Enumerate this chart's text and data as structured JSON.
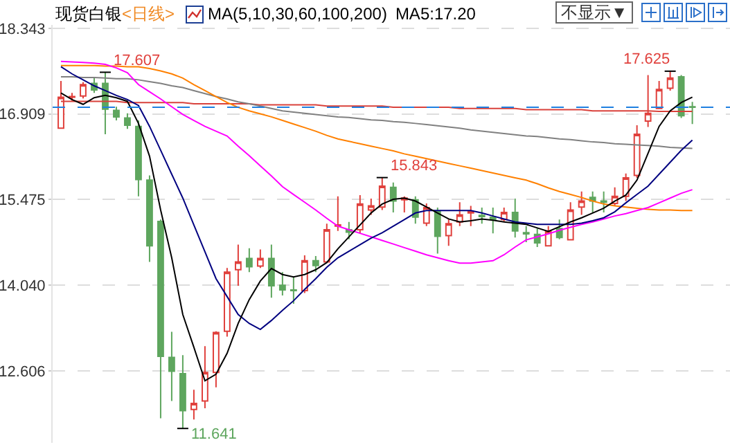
{
  "chart_data": {
    "type": "candlestick",
    "title": "现货白银",
    "subtitle": "<日线>",
    "categories": [
      null,
      null,
      null,
      null,
      null,
      null,
      null,
      null,
      null,
      null,
      null,
      null,
      null,
      null,
      null,
      null,
      null,
      null,
      null,
      null,
      null,
      null,
      null,
      null,
      null,
      null,
      null,
      null,
      null,
      null,
      null,
      null,
      null,
      null,
      null,
      null,
      null,
      null,
      null,
      null,
      null,
      null,
      null,
      null,
      null,
      null,
      null,
      null,
      null,
      null,
      null,
      null,
      null,
      null,
      null,
      null,
      null,
      null
    ],
    "ohlc": [
      [
        16.67,
        17.46,
        16.67,
        17.19
      ],
      [
        17.19,
        17.26,
        17.13,
        17.2
      ],
      [
        17.21,
        17.44,
        17.17,
        17.4
      ],
      [
        17.42,
        17.53,
        17.26,
        17.31
      ],
      [
        17.42,
        17.607,
        16.57,
        16.99
      ],
      [
        16.97,
        17.03,
        16.8,
        16.86
      ],
      [
        16.84,
        16.92,
        16.66,
        16.72
      ],
      [
        16.7,
        16.8,
        15.53,
        15.81
      ],
      [
        15.8,
        15.88,
        14.43,
        14.7
      ],
      [
        15.11,
        15.14,
        11.81,
        12.85
      ],
      [
        12.83,
        13.26,
        12.1,
        12.6
      ],
      [
        12.56,
        12.87,
        11.641,
        11.94
      ],
      [
        11.96,
        12.29,
        11.79,
        12.06
      ],
      [
        12.1,
        13.02,
        11.98,
        12.58
      ],
      [
        12.58,
        13.27,
        12.33,
        13.25
      ],
      [
        13.27,
        14.33,
        13.18,
        14.26
      ],
      [
        14.3,
        14.72,
        14.03,
        14.43
      ],
      [
        14.49,
        14.66,
        14.26,
        14.35
      ],
      [
        14.36,
        14.64,
        14.33,
        14.49
      ],
      [
        14.49,
        14.72,
        13.83,
        14.03
      ],
      [
        14.04,
        14.26,
        13.87,
        13.96
      ],
      [
        13.96,
        14.18,
        13.73,
        13.95
      ],
      [
        13.95,
        14.54,
        13.91,
        14.45
      ],
      [
        14.45,
        14.53,
        14.26,
        14.37
      ],
      [
        14.43,
        15.07,
        14.41,
        14.97
      ],
      [
        15.03,
        15.53,
        14.95,
        15.05
      ],
      [
        14.97,
        15.1,
        14.81,
        14.93
      ],
      [
        14.97,
        15.55,
        14.91,
        15.4
      ],
      [
        15.3,
        15.49,
        15.22,
        15.37
      ],
      [
        15.35,
        15.843,
        15.3,
        15.7
      ],
      [
        15.68,
        15.76,
        15.26,
        15.45
      ],
      [
        15.47,
        15.53,
        15.26,
        15.5
      ],
      [
        15.47,
        15.53,
        15.07,
        15.18
      ],
      [
        15.08,
        15.41,
        15.03,
        15.34
      ],
      [
        15.28,
        15.34,
        14.57,
        14.86
      ],
      [
        14.87,
        15.14,
        14.7,
        15.07
      ],
      [
        15.1,
        15.43,
        15.03,
        15.22
      ],
      [
        15.25,
        15.37,
        15.03,
        15.27
      ],
      [
        15.21,
        15.34,
        15.07,
        15.19
      ],
      [
        15.18,
        15.34,
        14.91,
        15.14
      ],
      [
        15.14,
        15.34,
        15.1,
        15.26
      ],
      [
        15.26,
        15.49,
        14.84,
        14.95
      ],
      [
        14.92,
        15.03,
        14.76,
        14.9
      ],
      [
        14.89,
        14.99,
        14.68,
        14.75
      ],
      [
        14.7,
        15.03,
        14.7,
        14.94
      ],
      [
        14.99,
        15.14,
        14.81,
        14.84
      ],
      [
        14.8,
        15.43,
        14.8,
        15.3
      ],
      [
        15.35,
        15.61,
        15.22,
        15.45
      ],
      [
        15.51,
        15.61,
        15.26,
        15.45
      ],
      [
        15.45,
        15.61,
        15.26,
        15.43
      ],
      [
        15.41,
        15.68,
        15.37,
        15.53
      ],
      [
        15.53,
        15.91,
        15.45,
        15.84
      ],
      [
        15.88,
        16.72,
        15.84,
        16.57
      ],
      [
        16.79,
        17.56,
        16.69,
        16.92
      ],
      [
        17.0,
        17.46,
        17.0,
        17.32
      ],
      [
        17.34,
        17.625,
        17.3,
        17.51
      ],
      [
        17.53,
        17.56,
        16.84,
        16.88
      ],
      [
        17.03,
        17.11,
        16.74,
        17.02
      ]
    ],
    "colors": [
      "#e0403c",
      "#e0403c",
      "#e0403c",
      "#5ea65e",
      "#5ea65e",
      "#5ea65e",
      "#5ea65e",
      "#5ea65e",
      "#5ea65e",
      "#5ea65e",
      "#5ea65e",
      "#5ea65e",
      "#e0403c",
      "#e0403c",
      "#e0403c",
      "#e0403c",
      "#e0403c",
      "#5ea65e",
      "#e0403c",
      "#5ea65e",
      "#5ea65e",
      "#5ea65e",
      "#e0403c",
      "#5ea65e",
      "#e0403c",
      "#e0403c",
      "#5ea65e",
      "#e0403c",
      "#e0403c",
      "#e0403c",
      "#5ea65e",
      "#e0403c",
      "#5ea65e",
      "#e0403c",
      "#5ea65e",
      "#e0403c",
      "#e0403c",
      "#e0403c",
      "#5ea65e",
      "#5ea65e",
      "#e0403c",
      "#5ea65e",
      "#5ea65e",
      "#5ea65e",
      "#e0403c",
      "#5ea65e",
      "#e0403c",
      "#e0403c",
      "#5ea65e",
      "#5ea65e",
      "#e0403c",
      "#e0403c",
      "#e0403c",
      "#e0403c",
      "#e0403c",
      "#e0403c",
      "#5ea65e",
      "#5ea65e"
    ],
    "series": [
      {
        "type": "line",
        "color": "#d9413b",
        "values": [
          17.12,
          17.12,
          17.12,
          17.12,
          17.12,
          17.12,
          17.1,
          17.1,
          17.1,
          17.1,
          17.1,
          17.1,
          17.08,
          17.08,
          17.08,
          17.08,
          17.08,
          17.08,
          17.06,
          17.06,
          17.06,
          17.06,
          17.06,
          17.06,
          17.04,
          17.04,
          17.04,
          17.04,
          17.04,
          17.04,
          17.02,
          17.02,
          17.02,
          17.02,
          17.02,
          17.02,
          17.0,
          17.0,
          17.0,
          17.0,
          17.0,
          17.0,
          16.98,
          16.98,
          16.98,
          16.98,
          16.98,
          16.98,
          16.96,
          16.96,
          16.96,
          16.96,
          16.96,
          16.96,
          16.95,
          16.95,
          16.95,
          16.95
        ]
      },
      {
        "type": "line",
        "color": "#808080",
        "values": [
          17.53,
          17.53,
          17.52,
          17.52,
          17.51,
          17.5,
          17.5,
          17.48,
          17.45,
          17.42,
          17.38,
          17.35,
          17.3,
          17.25,
          17.2,
          17.16,
          17.11,
          17.08,
          17.04,
          17.0,
          16.96,
          16.94,
          16.92,
          16.9,
          16.88,
          16.86,
          16.85,
          16.83,
          16.81,
          16.8,
          16.78,
          16.77,
          16.75,
          16.73,
          16.71,
          16.69,
          16.67,
          16.64,
          16.62,
          16.6,
          16.58,
          16.56,
          16.54,
          16.53,
          16.51,
          16.49,
          16.48,
          16.46,
          16.44,
          16.43,
          16.41,
          16.4,
          16.39,
          16.38,
          16.37,
          16.35,
          16.34,
          16.33
        ]
      },
      {
        "type": "line",
        "color": "#ff8000",
        "values": [
          17.72,
          17.72,
          17.72,
          17.72,
          17.71,
          17.71,
          17.7,
          17.7,
          17.67,
          17.63,
          17.58,
          17.51,
          17.4,
          17.3,
          17.2,
          17.1,
          17.02,
          16.96,
          16.91,
          16.86,
          16.8,
          16.74,
          16.68,
          16.62,
          16.55,
          16.49,
          16.45,
          16.41,
          16.37,
          16.33,
          16.29,
          16.24,
          16.2,
          16.16,
          16.12,
          16.08,
          16.04,
          16.0,
          15.96,
          15.92,
          15.88,
          15.84,
          15.8,
          15.74,
          15.67,
          15.61,
          15.56,
          15.51,
          15.45,
          15.4,
          15.37,
          15.35,
          15.33,
          15.31,
          15.3,
          15.3,
          15.29,
          15.29
        ]
      },
      {
        "type": "line",
        "color": "#ff00ff",
        "values": [
          17.79,
          17.78,
          17.77,
          17.76,
          17.74,
          17.68,
          17.6,
          17.4,
          17.28,
          17.16,
          17.03,
          16.9,
          16.8,
          16.7,
          16.62,
          16.54,
          16.37,
          16.21,
          16.04,
          15.87,
          15.69,
          15.56,
          15.43,
          15.3,
          15.16,
          15.03,
          14.97,
          14.91,
          14.85,
          14.79,
          14.73,
          14.67,
          14.61,
          14.55,
          14.5,
          14.45,
          14.41,
          14.41,
          14.43,
          14.45,
          14.55,
          14.68,
          14.8,
          14.85,
          14.9,
          14.96,
          15.01,
          15.06,
          15.1,
          15.15,
          15.2,
          15.24,
          15.29,
          15.34,
          15.42,
          15.5,
          15.58,
          15.64
        ]
      },
      {
        "type": "line",
        "color": "#000080",
        "values": [
          17.7,
          17.58,
          17.48,
          17.38,
          17.3,
          17.22,
          17.15,
          17.05,
          16.7,
          16.3,
          15.9,
          15.5,
          15.05,
          14.6,
          14.15,
          13.85,
          13.55,
          13.4,
          13.3,
          13.45,
          13.62,
          13.78,
          13.97,
          14.15,
          14.34,
          14.5,
          14.61,
          14.72,
          14.83,
          14.92,
          15.03,
          15.14,
          15.25,
          15.29,
          15.29,
          15.29,
          15.29,
          15.29,
          15.25,
          15.2,
          15.15,
          15.1,
          15.08,
          15.06,
          15.06,
          15.06,
          15.06,
          15.08,
          15.12,
          15.17,
          15.27,
          15.42,
          15.56,
          15.7,
          15.9,
          16.1,
          16.3,
          16.47
        ]
      },
      {
        "type": "line",
        "color": "#000000",
        "values": [
          17.26,
          17.15,
          17.07,
          17.18,
          17.22,
          17.18,
          17.12,
          16.75,
          16.2,
          15.3,
          14.5,
          13.55,
          13.0,
          12.44,
          12.55,
          12.9,
          13.4,
          13.8,
          14.11,
          14.32,
          14.22,
          14.18,
          14.22,
          14.3,
          14.42,
          14.65,
          14.85,
          15.05,
          15.25,
          15.4,
          15.48,
          15.5,
          15.45,
          15.35,
          15.25,
          15.15,
          15.1,
          15.12,
          15.15,
          15.13,
          15.1,
          15.08,
          15.06,
          15.0,
          14.94,
          15.02,
          15.1,
          15.17,
          15.25,
          15.33,
          15.45,
          15.55,
          15.8,
          16.25,
          16.7,
          16.96,
          17.1,
          17.19
        ]
      }
    ],
    "ylim": [
      11.4,
      18.4
    ],
    "yticks": [
      {
        "value": 12.606,
        "label": "12.606"
      },
      {
        "value": 14.04,
        "label": "14.040"
      },
      {
        "value": 15.475,
        "label": "15.475"
      },
      {
        "value": 16.909,
        "label": "16.909"
      },
      {
        "value": 18.343,
        "label": "18.343"
      }
    ],
    "grid": "y",
    "tick_labels": "y",
    "ref_lines": [
      {
        "axis": "y",
        "value": 17.02,
        "color": "#1e7fe0",
        "line_style": "dashed"
      }
    ],
    "annotations": [
      "MA(5,10,30,60,100,200)",
      "MA5:17.20",
      "不显示▼",
      {
        "text": "17.607",
        "y": 17.607
      },
      "11.641",
      "15.843",
      {
        "text": "17.625",
        "y": 17.625
      }
    ]
  }
}
